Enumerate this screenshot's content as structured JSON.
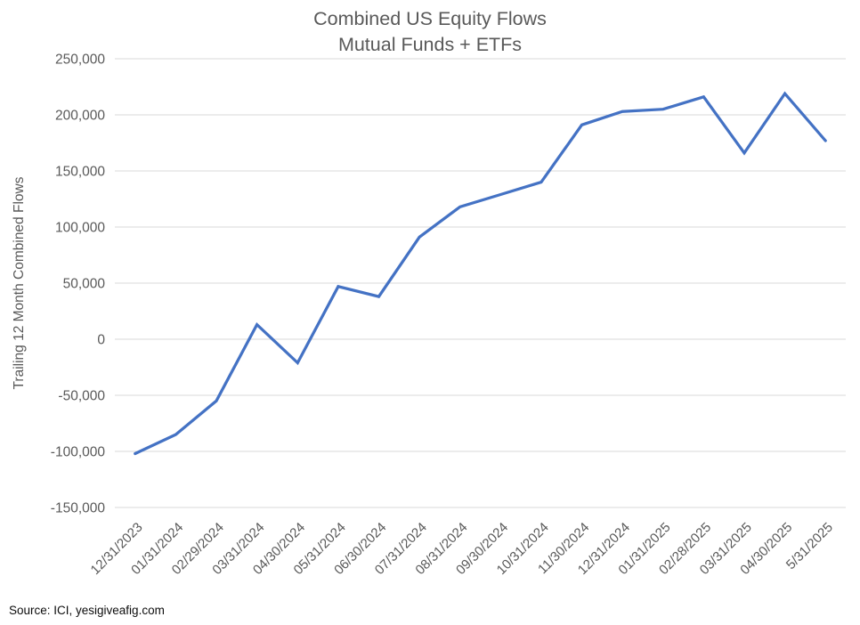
{
  "title": {
    "line1": "Combined US Equity Flows",
    "line2": "Mutual Funds + ETFs"
  },
  "y_axis_title": "Trailing 12 Month Combined Flows",
  "source": "Source: ICI, yesigiveafig.com",
  "colors": {
    "line": "#4472C4",
    "gridline": "#D9D9D9",
    "axis_text": "#595959",
    "title_text": "#595959",
    "source_text": "#0d0d0d"
  },
  "chart_data": {
    "type": "line",
    "title": "Combined US Equity Flows — Mutual Funds + ETFs",
    "xlabel": "",
    "ylabel": "Trailing 12 Month Combined Flows",
    "ylim": [
      -150000,
      250000
    ],
    "ytick_step": 50000,
    "grid": true,
    "legend": false,
    "categories": [
      "12/31/2023",
      "01/31/2024",
      "02/29/2024",
      "03/31/2024",
      "04/30/2024",
      "05/31/2024",
      "06/30/2024",
      "07/31/2024",
      "08/31/2024",
      "09/30/2024",
      "10/31/2024",
      "11/30/2024",
      "12/31/2024",
      "01/31/2025",
      "02/28/2025",
      "03/31/2025",
      "04/30/2025",
      "5/31/2025"
    ],
    "series": [
      {
        "name": "Trailing 12 Month Combined Flows",
        "values": [
          -102000,
          -85000,
          -55000,
          13000,
          -21000,
          47000,
          38000,
          91000,
          118000,
          129000,
          140000,
          191000,
          203000,
          205000,
          216000,
          166000,
          219000,
          177000
        ]
      }
    ]
  }
}
